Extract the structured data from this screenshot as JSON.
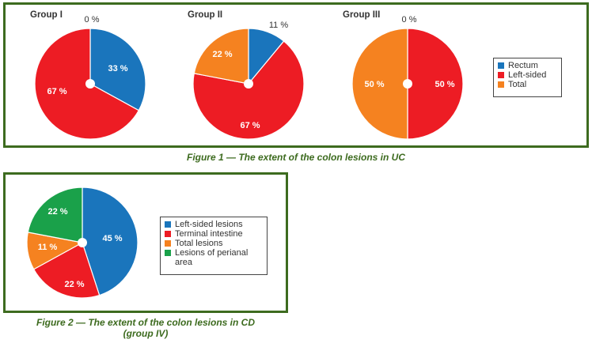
{
  "colors": {
    "rectum": "#1a75bc",
    "left_sided": "#ed1c24",
    "total": "#f58220",
    "perianal": "#1aa14a",
    "frame": "#3d6b1f"
  },
  "figure1": {
    "caption": "Figure 1 — The extent of the colon lesions in UC",
    "legend": [
      "Rectum",
      "Left-sided",
      "Total"
    ]
  },
  "figure2": {
    "caption_line1": "Figure 2 — The extent of the colon lesions in CD",
    "caption_line2": "(group IV)",
    "legend": [
      "Left-sided lesions",
      "Terminal intestine",
      "Total lesions",
      "Lesions of perianal area"
    ]
  },
  "chart_data": [
    {
      "type": "pie",
      "title": "Group I",
      "categories": [
        "Rectum",
        "Left-sided",
        "Total"
      ],
      "values": [
        33,
        67,
        0
      ],
      "labels": [
        "33 %",
        "67 %",
        "0 %"
      ]
    },
    {
      "type": "pie",
      "title": "Group II",
      "categories": [
        "Rectum",
        "Left-sided",
        "Total"
      ],
      "values": [
        11,
        67,
        22
      ],
      "labels": [
        "11 %",
        "67 %",
        "22 %"
      ]
    },
    {
      "type": "pie",
      "title": "Group III",
      "categories": [
        "Rectum",
        "Left-sided",
        "Total"
      ],
      "values": [
        0,
        50,
        50
      ],
      "labels": [
        "0 %",
        "50 %",
        "50 %"
      ]
    },
    {
      "type": "pie",
      "title": "",
      "categories": [
        "Left-sided lesions",
        "Terminal intestine",
        "Total lesions",
        "Lesions of perianal area"
      ],
      "values": [
        45,
        22,
        11,
        22
      ],
      "labels": [
        "45 %",
        "22 %",
        "11 %",
        "22 %"
      ]
    }
  ]
}
